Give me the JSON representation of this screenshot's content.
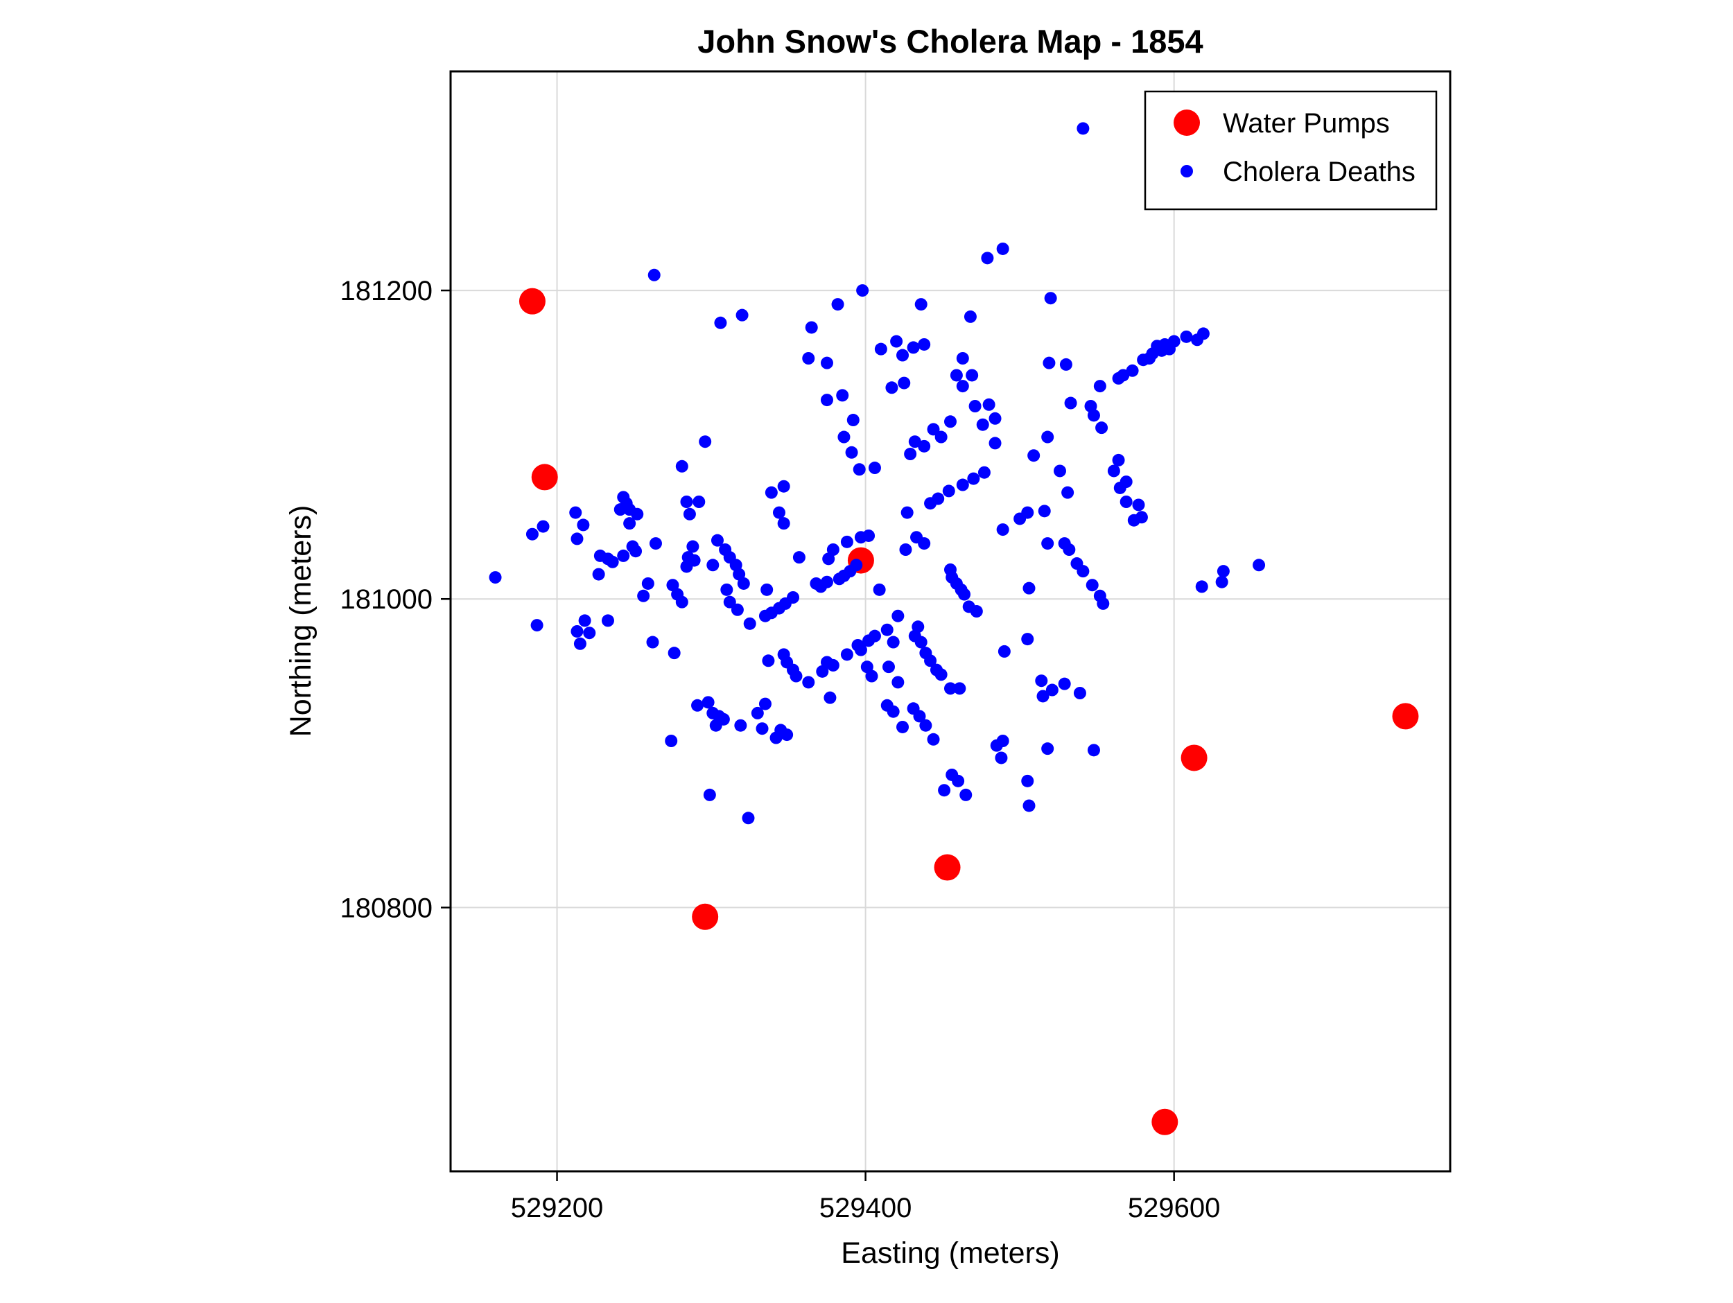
{
  "chart_data": {
    "type": "scatter",
    "title": "John Snow's Cholera Map - 1854",
    "xlabel": "Easting (meters)",
    "ylabel": "Northing (meters)",
    "xlim": [
      529131,
      529779
    ],
    "ylim": [
      180629,
      181342
    ],
    "x_ticks": [
      529200,
      529400,
      529600
    ],
    "y_ticks": [
      180800,
      181000,
      181200
    ],
    "grid": true,
    "grid_color": "#d9d9d9",
    "border_color": "#000000",
    "background": "#ffffff",
    "legend": {
      "position": "upper right",
      "entries": [
        {
          "label": "Water Pumps",
          "color": "#ff0000",
          "marker_radius": 19
        },
        {
          "label": "Cholera Deaths",
          "color": "#0000ff",
          "marker_radius": 9
        }
      ]
    },
    "series": [
      {
        "name": "Water Pumps",
        "color": "#ff0000",
        "marker_radius": 19,
        "points": [
          [
            529184,
            181193
          ],
          [
            529192,
            181079
          ],
          [
            529397,
            181025
          ],
          [
            529296,
            180794
          ],
          [
            529453,
            180826
          ],
          [
            529594,
            180661
          ],
          [
            529613,
            180897
          ],
          [
            529750,
            180924
          ]
        ]
      },
      {
        "name": "Cholera Deaths",
        "color": "#0000ff",
        "marker_radius": 9,
        "points": [
          [
            529306,
            181179
          ],
          [
            529320,
            181184
          ],
          [
            529296,
            181102
          ],
          [
            529281,
            181086
          ],
          [
            529284,
            181063
          ],
          [
            529292,
            181063
          ],
          [
            529286,
            181055
          ],
          [
            529243,
            181066
          ],
          [
            529245,
            181062
          ],
          [
            529241,
            181058
          ],
          [
            529247,
            181058
          ],
          [
            529252,
            181055
          ],
          [
            529247,
            181049
          ],
          [
            529212,
            181056
          ],
          [
            529217,
            181048
          ],
          [
            529191,
            181047
          ],
          [
            529184,
            181042
          ],
          [
            529213,
            181039
          ],
          [
            529263,
            181210
          ],
          [
            529398,
            181200
          ],
          [
            529382,
            181191
          ],
          [
            529436,
            181191
          ],
          [
            529468,
            181183
          ],
          [
            529365,
            181176
          ],
          [
            529420,
            181167
          ],
          [
            529410,
            181162
          ],
          [
            529424,
            181158
          ],
          [
            529431,
            181163
          ],
          [
            529438,
            181165
          ],
          [
            529363,
            181156
          ],
          [
            529375,
            181153
          ],
          [
            529463,
            181156
          ],
          [
            529459,
            181145
          ],
          [
            529469,
            181145
          ],
          [
            529463,
            181138
          ],
          [
            529417,
            181137
          ],
          [
            529425,
            181140
          ],
          [
            529375,
            181129
          ],
          [
            529385,
            181132
          ],
          [
            529471,
            181125
          ],
          [
            529480,
            181126
          ],
          [
            529484,
            181117
          ],
          [
            529476,
            181113
          ],
          [
            529392,
            181116
          ],
          [
            529455,
            181115
          ],
          [
            529444,
            181110
          ],
          [
            529449,
            181105
          ],
          [
            529386,
            181105
          ],
          [
            529432,
            181102
          ],
          [
            529438,
            181099
          ],
          [
            529429,
            181094
          ],
          [
            529484,
            181101
          ],
          [
            529509,
            181093
          ],
          [
            529391,
            181095
          ],
          [
            529396,
            181084
          ],
          [
            529406,
            181085
          ],
          [
            529477,
            181082
          ],
          [
            529470,
            181078
          ],
          [
            529463,
            181074
          ],
          [
            529454,
            181070
          ],
          [
            529447,
            181065
          ],
          [
            529442,
            181062
          ],
          [
            529347,
            181073
          ],
          [
            529339,
            181069
          ],
          [
            529344,
            181056
          ],
          [
            529347,
            181049
          ],
          [
            529427,
            181056
          ],
          [
            529505,
            181056
          ],
          [
            529500,
            181052
          ],
          [
            529489,
            181045
          ],
          [
            529397,
            181040
          ],
          [
            529402,
            181041
          ],
          [
            529433,
            181040
          ],
          [
            529520,
            181195
          ],
          [
            529619,
            181172
          ],
          [
            529615,
            181168
          ],
          [
            529608,
            181170
          ],
          [
            529600,
            181167
          ],
          [
            529597,
            181162
          ],
          [
            529594,
            181165
          ],
          [
            529592,
            181161
          ],
          [
            529589,
            181164
          ],
          [
            529586,
            181159
          ],
          [
            529584,
            181156
          ],
          [
            529580,
            181155
          ],
          [
            529573,
            181148
          ],
          [
            529567,
            181145
          ],
          [
            529564,
            181143
          ],
          [
            529519,
            181153
          ],
          [
            529530,
            181152
          ],
          [
            529552,
            181138
          ],
          [
            529533,
            181127
          ],
          [
            529546,
            181125
          ],
          [
            529548,
            181119
          ],
          [
            529553,
            181111
          ],
          [
            529518,
            181105
          ],
          [
            529564,
            181090
          ],
          [
            529561,
            181083
          ],
          [
            529526,
            181083
          ],
          [
            529569,
            181076
          ],
          [
            529565,
            181072
          ],
          [
            529531,
            181069
          ],
          [
            529569,
            181063
          ],
          [
            529577,
            181061
          ],
          [
            529516,
            181057
          ],
          [
            529574,
            181051
          ],
          [
            529579,
            181053
          ],
          [
            529160,
            181014
          ],
          [
            529187,
            180983
          ],
          [
            529228,
            181028
          ],
          [
            529233,
            181026
          ],
          [
            529236,
            181024
          ],
          [
            529243,
            181028
          ],
          [
            529249,
            181034
          ],
          [
            529251,
            181031
          ],
          [
            529264,
            181036
          ],
          [
            529227,
            181016
          ],
          [
            529259,
            181010
          ],
          [
            529256,
            181002
          ],
          [
            529275,
            181009
          ],
          [
            529278,
            181003
          ],
          [
            529281,
            180998
          ],
          [
            529288,
            181034
          ],
          [
            529285,
            181027
          ],
          [
            529284,
            181021
          ],
          [
            529289,
            181025
          ],
          [
            529301,
            181022
          ],
          [
            529309,
            181032
          ],
          [
            529312,
            181027
          ],
          [
            529316,
            181022
          ],
          [
            529318,
            181016
          ],
          [
            529321,
            181010
          ],
          [
            529310,
            181006
          ],
          [
            529312,
            180998
          ],
          [
            529317,
            180993
          ],
          [
            529325,
            180984
          ],
          [
            529304,
            181038
          ],
          [
            529218,
            180986
          ],
          [
            529221,
            180978
          ],
          [
            529213,
            180979
          ],
          [
            529215,
            180971
          ],
          [
            529233,
            180986
          ],
          [
            529262,
            180972
          ],
          [
            529276,
            180965
          ],
          [
            529291,
            180931
          ],
          [
            529298,
            180933
          ],
          [
            529301,
            180926
          ],
          [
            529305,
            180924
          ],
          [
            529308,
            180922
          ],
          [
            529303,
            180918
          ],
          [
            529319,
            180918
          ],
          [
            529330,
            180926
          ],
          [
            529333,
            180916
          ],
          [
            529274,
            180908
          ],
          [
            529299,
            180873
          ],
          [
            529357,
            181027
          ],
          [
            529379,
            181032
          ],
          [
            529376,
            181026
          ],
          [
            529388,
            181037
          ],
          [
            529394,
            181022
          ],
          [
            529390,
            181018
          ],
          [
            529386,
            181015
          ],
          [
            529383,
            181013
          ],
          [
            529375,
            181011
          ],
          [
            529371,
            181008
          ],
          [
            529368,
            181010
          ],
          [
            529336,
            181006
          ],
          [
            529353,
            181001
          ],
          [
            529348,
            180997
          ],
          [
            529344,
            180994
          ],
          [
            529339,
            180991
          ],
          [
            529335,
            180989
          ],
          [
            529409,
            181006
          ],
          [
            529426,
            181032
          ],
          [
            529438,
            181036
          ],
          [
            529455,
            181019
          ],
          [
            529456,
            181014
          ],
          [
            529459,
            181010
          ],
          [
            529462,
            181006
          ],
          [
            529464,
            181003
          ],
          [
            529467,
            180995
          ],
          [
            529472,
            180992
          ],
          [
            529506,
            181007
          ],
          [
            529421,
            180989
          ],
          [
            529414,
            180980
          ],
          [
            529418,
            180972
          ],
          [
            529406,
            180976
          ],
          [
            529402,
            180973
          ],
          [
            529395,
            180970
          ],
          [
            529397,
            180967
          ],
          [
            529434,
            180982
          ],
          [
            529432,
            180976
          ],
          [
            529436,
            180972
          ],
          [
            529439,
            180965
          ],
          [
            529442,
            180960
          ],
          [
            529446,
            180954
          ],
          [
            529449,
            180951
          ],
          [
            529388,
            180964
          ],
          [
            529375,
            180959
          ],
          [
            529379,
            180957
          ],
          [
            529372,
            180953
          ],
          [
            529347,
            180964
          ],
          [
            529349,
            180959
          ],
          [
            529353,
            180954
          ],
          [
            529355,
            180950
          ],
          [
            529337,
            180960
          ],
          [
            529363,
            180946
          ],
          [
            529401,
            180956
          ],
          [
            529404,
            180950
          ],
          [
            529415,
            180956
          ],
          [
            529421,
            180946
          ],
          [
            529455,
            180942
          ],
          [
            529461,
            180942
          ],
          [
            529377,
            180936
          ],
          [
            529414,
            180931
          ],
          [
            529418,
            180927
          ],
          [
            529431,
            180929
          ],
          [
            529435,
            180924
          ],
          [
            529439,
            180918
          ],
          [
            529424,
            180917
          ],
          [
            529444,
            180909
          ],
          [
            529335,
            180932
          ],
          [
            529345,
            180915
          ],
          [
            529349,
            180912
          ],
          [
            529342,
            180910
          ],
          [
            529485,
            180905
          ],
          [
            529489,
            180908
          ],
          [
            529488,
            180897
          ],
          [
            529456,
            180886
          ],
          [
            529460,
            180882
          ],
          [
            529451,
            180876
          ],
          [
            529465,
            180873
          ],
          [
            529505,
            180882
          ],
          [
            529506,
            180866
          ],
          [
            529505,
            180974
          ],
          [
            529490,
            180966
          ],
          [
            529518,
            181036
          ],
          [
            529529,
            181036
          ],
          [
            529532,
            181032
          ],
          [
            529537,
            181023
          ],
          [
            529541,
            181018
          ],
          [
            529547,
            181009
          ],
          [
            529552,
            181002
          ],
          [
            529554,
            180997
          ],
          [
            529618,
            181008
          ],
          [
            529631,
            181011
          ],
          [
            529632,
            181018
          ],
          [
            529655,
            181022
          ],
          [
            529514,
            180947
          ],
          [
            529521,
            180941
          ],
          [
            529515,
            180937
          ],
          [
            529529,
            180945
          ],
          [
            529539,
            180939
          ],
          [
            529518,
            180903
          ],
          [
            529548,
            180902
          ],
          [
            529541,
            181305
          ],
          [
            529479,
            181221
          ],
          [
            529489,
            181227
          ],
          [
            529324,
            180858
          ]
        ]
      }
    ]
  }
}
